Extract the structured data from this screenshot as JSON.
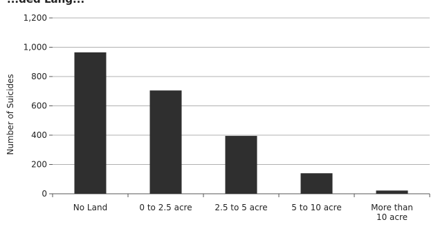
{
  "chart_data": {
    "type": "bar",
    "title": "...ded Lang...",
    "ylabel": "Number of Suicides",
    "xlabel": "",
    "categories": [
      [
        "No Land"
      ],
      [
        "0 to 2.5 acre"
      ],
      [
        "2.5 to 5 acre"
      ],
      [
        "5 to 10 acre"
      ],
      [
        "More than",
        "10 acre"
      ]
    ],
    "values": [
      965,
      705,
      395,
      140,
      22
    ],
    "ylim": [
      0,
      1200
    ],
    "yticks": [
      0,
      200,
      400,
      600,
      800,
      1000,
      1200
    ],
    "ytick_labels": [
      "0",
      "200",
      "400",
      "600",
      "800",
      "1,000",
      "1,200"
    ],
    "grid": true,
    "legend": "none",
    "colors": {
      "bar": "#2f2f2f",
      "grid": "#b0b0b0",
      "axis": "#555555"
    }
  }
}
